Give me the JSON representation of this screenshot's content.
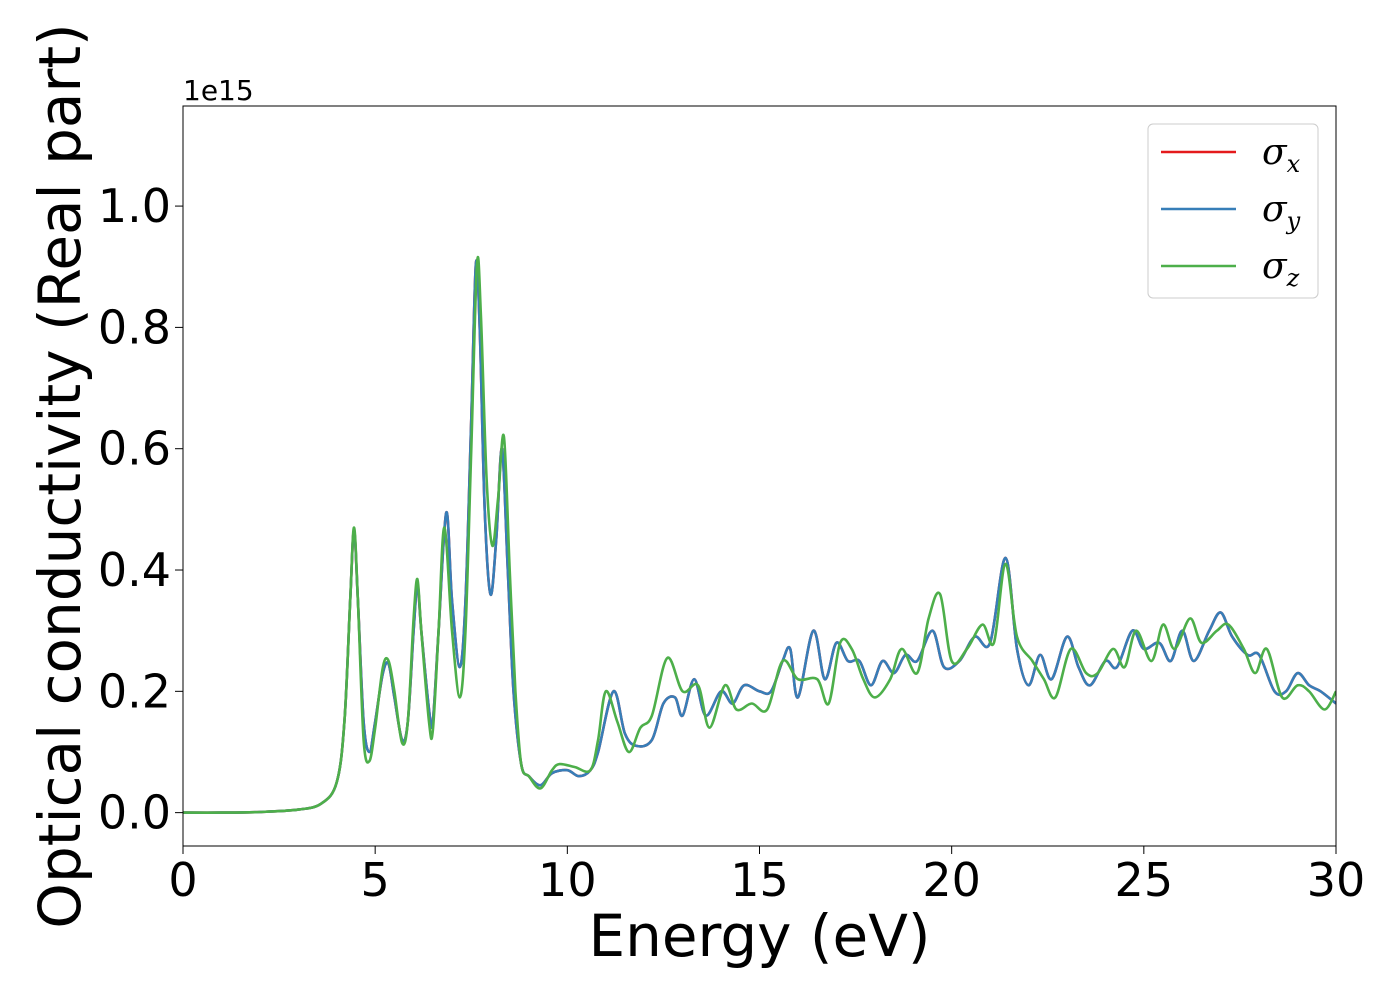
{
  "chart_data": {
    "type": "line",
    "xlabel": "Energy (eV)",
    "ylabel": "Optical conductivity (Real part)",
    "y_offset_label": "1e15",
    "xlim": [
      0,
      30
    ],
    "ylim": [
      -0.055,
      1.165
    ],
    "x_ticks": [
      0,
      5,
      10,
      15,
      20,
      25,
      30
    ],
    "x_tick_labels": [
      "0",
      "5",
      "10",
      "15",
      "20",
      "25",
      "30"
    ],
    "y_ticks": [
      0.0,
      0.2,
      0.4,
      0.6,
      0.8,
      1.0
    ],
    "y_tick_labels": [
      "0.0",
      "0.2",
      "0.4",
      "0.6",
      "0.8",
      "1.0"
    ],
    "grid": false,
    "legend_position": "top-right",
    "series": [
      {
        "name": "σ",
        "subscript": "x",
        "color": "#e41a1c",
        "points": [
          [
            0,
            0
          ],
          [
            1,
            0
          ],
          [
            2,
            0.001
          ],
          [
            3,
            0.005
          ],
          [
            3.6,
            0.015
          ],
          [
            4.0,
            0.05
          ],
          [
            4.2,
            0.15
          ],
          [
            4.35,
            0.35
          ],
          [
            4.45,
            0.465
          ],
          [
            4.55,
            0.35
          ],
          [
            4.7,
            0.15
          ],
          [
            4.85,
            0.1
          ],
          [
            5.0,
            0.15
          ],
          [
            5.2,
            0.23
          ],
          [
            5.35,
            0.245
          ],
          [
            5.5,
            0.19
          ],
          [
            5.7,
            0.12
          ],
          [
            5.85,
            0.15
          ],
          [
            6.0,
            0.3
          ],
          [
            6.1,
            0.375
          ],
          [
            6.2,
            0.3
          ],
          [
            6.4,
            0.17
          ],
          [
            6.5,
            0.15
          ],
          [
            6.65,
            0.3
          ],
          [
            6.85,
            0.495
          ],
          [
            7.0,
            0.35
          ],
          [
            7.2,
            0.24
          ],
          [
            7.35,
            0.35
          ],
          [
            7.5,
            0.65
          ],
          [
            7.62,
            0.905
          ],
          [
            7.72,
            0.8
          ],
          [
            7.85,
            0.5
          ],
          [
            8.0,
            0.36
          ],
          [
            8.15,
            0.45
          ],
          [
            8.3,
            0.6
          ],
          [
            8.45,
            0.4
          ],
          [
            8.6,
            0.2
          ],
          [
            8.8,
            0.08
          ],
          [
            9.0,
            0.06
          ],
          [
            9.3,
            0.045
          ],
          [
            9.6,
            0.065
          ],
          [
            10.0,
            0.07
          ],
          [
            10.3,
            0.06
          ],
          [
            10.6,
            0.07
          ],
          [
            10.8,
            0.1
          ],
          [
            11.2,
            0.2
          ],
          [
            11.5,
            0.13
          ],
          [
            11.8,
            0.11
          ],
          [
            12.2,
            0.12
          ],
          [
            12.5,
            0.18
          ],
          [
            12.8,
            0.19
          ],
          [
            13.0,
            0.16
          ],
          [
            13.3,
            0.22
          ],
          [
            13.6,
            0.16
          ],
          [
            14.0,
            0.2
          ],
          [
            14.3,
            0.18
          ],
          [
            14.6,
            0.21
          ],
          [
            15.0,
            0.2
          ],
          [
            15.3,
            0.2
          ],
          [
            15.6,
            0.25
          ],
          [
            15.8,
            0.27
          ],
          [
            16.0,
            0.19
          ],
          [
            16.4,
            0.3
          ],
          [
            16.7,
            0.22
          ],
          [
            17.0,
            0.28
          ],
          [
            17.3,
            0.25
          ],
          [
            17.6,
            0.25
          ],
          [
            17.9,
            0.21
          ],
          [
            18.2,
            0.25
          ],
          [
            18.5,
            0.23
          ],
          [
            18.8,
            0.26
          ],
          [
            19.1,
            0.25
          ],
          [
            19.5,
            0.3
          ],
          [
            19.8,
            0.24
          ],
          [
            20.2,
            0.25
          ],
          [
            20.6,
            0.29
          ],
          [
            21.0,
            0.28
          ],
          [
            21.4,
            0.42
          ],
          [
            21.7,
            0.27
          ],
          [
            22.0,
            0.21
          ],
          [
            22.3,
            0.26
          ],
          [
            22.6,
            0.22
          ],
          [
            23.0,
            0.29
          ],
          [
            23.3,
            0.24
          ],
          [
            23.6,
            0.21
          ],
          [
            24.0,
            0.25
          ],
          [
            24.3,
            0.24
          ],
          [
            24.7,
            0.3
          ],
          [
            25.0,
            0.27
          ],
          [
            25.4,
            0.28
          ],
          [
            25.7,
            0.25
          ],
          [
            26.0,
            0.3
          ],
          [
            26.3,
            0.25
          ],
          [
            26.7,
            0.3
          ],
          [
            27.0,
            0.33
          ],
          [
            27.3,
            0.29
          ],
          [
            27.7,
            0.26
          ],
          [
            28.0,
            0.26
          ],
          [
            28.4,
            0.2
          ],
          [
            28.7,
            0.2
          ],
          [
            29.0,
            0.23
          ],
          [
            29.3,
            0.21
          ],
          [
            29.6,
            0.2
          ],
          [
            30.0,
            0.18
          ]
        ]
      },
      {
        "name": "σ",
        "subscript": "y",
        "color": "#377eb8",
        "points": [
          [
            0,
            0
          ],
          [
            1,
            0
          ],
          [
            2,
            0.001
          ],
          [
            3,
            0.005
          ],
          [
            3.6,
            0.015
          ],
          [
            4.0,
            0.05
          ],
          [
            4.2,
            0.15
          ],
          [
            4.35,
            0.35
          ],
          [
            4.45,
            0.465
          ],
          [
            4.55,
            0.35
          ],
          [
            4.7,
            0.15
          ],
          [
            4.85,
            0.1
          ],
          [
            5.0,
            0.15
          ],
          [
            5.2,
            0.23
          ],
          [
            5.35,
            0.245
          ],
          [
            5.5,
            0.19
          ],
          [
            5.7,
            0.12
          ],
          [
            5.85,
            0.15
          ],
          [
            6.0,
            0.3
          ],
          [
            6.1,
            0.375
          ],
          [
            6.2,
            0.3
          ],
          [
            6.4,
            0.17
          ],
          [
            6.5,
            0.15
          ],
          [
            6.65,
            0.3
          ],
          [
            6.85,
            0.495
          ],
          [
            7.0,
            0.35
          ],
          [
            7.2,
            0.24
          ],
          [
            7.35,
            0.35
          ],
          [
            7.5,
            0.65
          ],
          [
            7.62,
            0.905
          ],
          [
            7.72,
            0.8
          ],
          [
            7.85,
            0.5
          ],
          [
            8.0,
            0.36
          ],
          [
            8.15,
            0.45
          ],
          [
            8.3,
            0.6
          ],
          [
            8.45,
            0.4
          ],
          [
            8.6,
            0.2
          ],
          [
            8.8,
            0.08
          ],
          [
            9.0,
            0.06
          ],
          [
            9.3,
            0.045
          ],
          [
            9.6,
            0.065
          ],
          [
            10.0,
            0.07
          ],
          [
            10.3,
            0.06
          ],
          [
            10.6,
            0.07
          ],
          [
            10.8,
            0.1
          ],
          [
            11.2,
            0.2
          ],
          [
            11.5,
            0.13
          ],
          [
            11.8,
            0.11
          ],
          [
            12.2,
            0.12
          ],
          [
            12.5,
            0.18
          ],
          [
            12.8,
            0.19
          ],
          [
            13.0,
            0.16
          ],
          [
            13.3,
            0.22
          ],
          [
            13.6,
            0.16
          ],
          [
            14.0,
            0.2
          ],
          [
            14.3,
            0.18
          ],
          [
            14.6,
            0.21
          ],
          [
            15.0,
            0.2
          ],
          [
            15.3,
            0.2
          ],
          [
            15.6,
            0.25
          ],
          [
            15.8,
            0.27
          ],
          [
            16.0,
            0.19
          ],
          [
            16.4,
            0.3
          ],
          [
            16.7,
            0.22
          ],
          [
            17.0,
            0.28
          ],
          [
            17.3,
            0.25
          ],
          [
            17.6,
            0.25
          ],
          [
            17.9,
            0.21
          ],
          [
            18.2,
            0.25
          ],
          [
            18.5,
            0.23
          ],
          [
            18.8,
            0.26
          ],
          [
            19.1,
            0.25
          ],
          [
            19.5,
            0.3
          ],
          [
            19.8,
            0.24
          ],
          [
            20.2,
            0.25
          ],
          [
            20.6,
            0.29
          ],
          [
            21.0,
            0.28
          ],
          [
            21.4,
            0.42
          ],
          [
            21.7,
            0.27
          ],
          [
            22.0,
            0.21
          ],
          [
            22.3,
            0.26
          ],
          [
            22.6,
            0.22
          ],
          [
            23.0,
            0.29
          ],
          [
            23.3,
            0.24
          ],
          [
            23.6,
            0.21
          ],
          [
            24.0,
            0.25
          ],
          [
            24.3,
            0.24
          ],
          [
            24.7,
            0.3
          ],
          [
            25.0,
            0.27
          ],
          [
            25.4,
            0.28
          ],
          [
            25.7,
            0.25
          ],
          [
            26.0,
            0.3
          ],
          [
            26.3,
            0.25
          ],
          [
            26.7,
            0.3
          ],
          [
            27.0,
            0.33
          ],
          [
            27.3,
            0.29
          ],
          [
            27.7,
            0.26
          ],
          [
            28.0,
            0.26
          ],
          [
            28.4,
            0.2
          ],
          [
            28.7,
            0.2
          ],
          [
            29.0,
            0.23
          ],
          [
            29.3,
            0.21
          ],
          [
            29.6,
            0.2
          ],
          [
            30.0,
            0.18
          ]
        ]
      },
      {
        "name": "σ",
        "subscript": "z",
        "color": "#4daf4a",
        "points": [
          [
            0,
            0
          ],
          [
            1,
            0
          ],
          [
            2,
            0.001
          ],
          [
            3,
            0.005
          ],
          [
            3.6,
            0.015
          ],
          [
            4.0,
            0.05
          ],
          [
            4.2,
            0.15
          ],
          [
            4.35,
            0.35
          ],
          [
            4.45,
            0.47
          ],
          [
            4.55,
            0.35
          ],
          [
            4.7,
            0.12
          ],
          [
            4.85,
            0.085
          ],
          [
            5.0,
            0.14
          ],
          [
            5.2,
            0.24
          ],
          [
            5.35,
            0.25
          ],
          [
            5.5,
            0.2
          ],
          [
            5.7,
            0.115
          ],
          [
            5.85,
            0.15
          ],
          [
            6.0,
            0.32
          ],
          [
            6.1,
            0.385
          ],
          [
            6.2,
            0.3
          ],
          [
            6.4,
            0.15
          ],
          [
            6.5,
            0.135
          ],
          [
            6.65,
            0.3
          ],
          [
            6.8,
            0.47
          ],
          [
            7.0,
            0.3
          ],
          [
            7.2,
            0.19
          ],
          [
            7.35,
            0.3
          ],
          [
            7.5,
            0.6
          ],
          [
            7.65,
            0.905
          ],
          [
            7.75,
            0.82
          ],
          [
            7.9,
            0.55
          ],
          [
            8.05,
            0.44
          ],
          [
            8.2,
            0.52
          ],
          [
            8.35,
            0.62
          ],
          [
            8.5,
            0.4
          ],
          [
            8.65,
            0.2
          ],
          [
            8.8,
            0.08
          ],
          [
            9.0,
            0.06
          ],
          [
            9.3,
            0.04
          ],
          [
            9.6,
            0.07
          ],
          [
            9.8,
            0.08
          ],
          [
            10.2,
            0.075
          ],
          [
            10.6,
            0.07
          ],
          [
            10.8,
            0.12
          ],
          [
            11.0,
            0.2
          ],
          [
            11.3,
            0.15
          ],
          [
            11.6,
            0.1
          ],
          [
            11.9,
            0.14
          ],
          [
            12.2,
            0.16
          ],
          [
            12.6,
            0.255
          ],
          [
            13.0,
            0.2
          ],
          [
            13.4,
            0.21
          ],
          [
            13.7,
            0.14
          ],
          [
            14.1,
            0.21
          ],
          [
            14.4,
            0.17
          ],
          [
            14.8,
            0.18
          ],
          [
            15.2,
            0.17
          ],
          [
            15.6,
            0.25
          ],
          [
            16.0,
            0.22
          ],
          [
            16.5,
            0.22
          ],
          [
            16.8,
            0.18
          ],
          [
            17.1,
            0.28
          ],
          [
            17.4,
            0.27
          ],
          [
            17.7,
            0.22
          ],
          [
            18.0,
            0.19
          ],
          [
            18.4,
            0.22
          ],
          [
            18.7,
            0.27
          ],
          [
            19.1,
            0.23
          ],
          [
            19.4,
            0.32
          ],
          [
            19.7,
            0.36
          ],
          [
            20.0,
            0.25
          ],
          [
            20.4,
            0.27
          ],
          [
            20.8,
            0.31
          ],
          [
            21.1,
            0.28
          ],
          [
            21.4,
            0.41
          ],
          [
            21.7,
            0.29
          ],
          [
            22.1,
            0.25
          ],
          [
            22.4,
            0.22
          ],
          [
            22.7,
            0.19
          ],
          [
            23.1,
            0.27
          ],
          [
            23.5,
            0.23
          ],
          [
            23.8,
            0.23
          ],
          [
            24.2,
            0.27
          ],
          [
            24.5,
            0.24
          ],
          [
            24.8,
            0.3
          ],
          [
            25.2,
            0.25
          ],
          [
            25.5,
            0.31
          ],
          [
            25.8,
            0.27
          ],
          [
            26.2,
            0.32
          ],
          [
            26.5,
            0.28
          ],
          [
            26.9,
            0.3
          ],
          [
            27.2,
            0.31
          ],
          [
            27.6,
            0.27
          ],
          [
            27.9,
            0.23
          ],
          [
            28.2,
            0.27
          ],
          [
            28.6,
            0.19
          ],
          [
            29.0,
            0.21
          ],
          [
            29.3,
            0.2
          ],
          [
            29.7,
            0.17
          ],
          [
            30.0,
            0.2
          ]
        ]
      }
    ]
  }
}
